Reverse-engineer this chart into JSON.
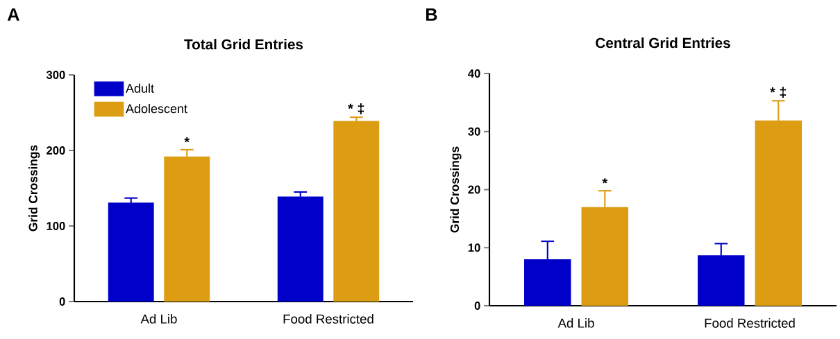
{
  "chart_data": [
    {
      "type": "bar",
      "title": "Total  Grid  Entries",
      "ylabel": "Grid  Crossings",
      "categories": [
        "Ad Lib",
        "Food  Restricted"
      ],
      "series": [
        {
          "name": "Adult",
          "color": "#0000c8",
          "values": [
            131,
            139
          ],
          "errors": [
            6,
            6
          ]
        },
        {
          "name": "Adolescent",
          "color": "#dc9d12",
          "values": [
            192,
            239
          ],
          "errors": [
            9,
            5
          ]
        }
      ],
      "ylim": [
        0,
        300
      ],
      "yticks": [
        0,
        100,
        200,
        300
      ],
      "legend": "top left",
      "annotations": [
        "A",
        "*",
        "* ‡"
      ]
    },
    {
      "type": "bar",
      "title": "Central  Grid  Entries",
      "ylabel": "Grid  Crossings",
      "categories": [
        "Ad Lib",
        "Food  Restricted"
      ],
      "series": [
        {
          "color": "#0000c8",
          "values": [
            8.0,
            8.7
          ],
          "errors": [
            3.1,
            2.0
          ]
        },
        {
          "color": "#dc9d12",
          "values": [
            17.0,
            31.9
          ],
          "errors": [
            2.8,
            3.4
          ]
        }
      ],
      "ylim": [
        0,
        40
      ],
      "yticks": [
        0,
        10,
        20,
        30,
        40
      ],
      "annotations": [
        "B",
        "*",
        "* ‡"
      ]
    }
  ]
}
